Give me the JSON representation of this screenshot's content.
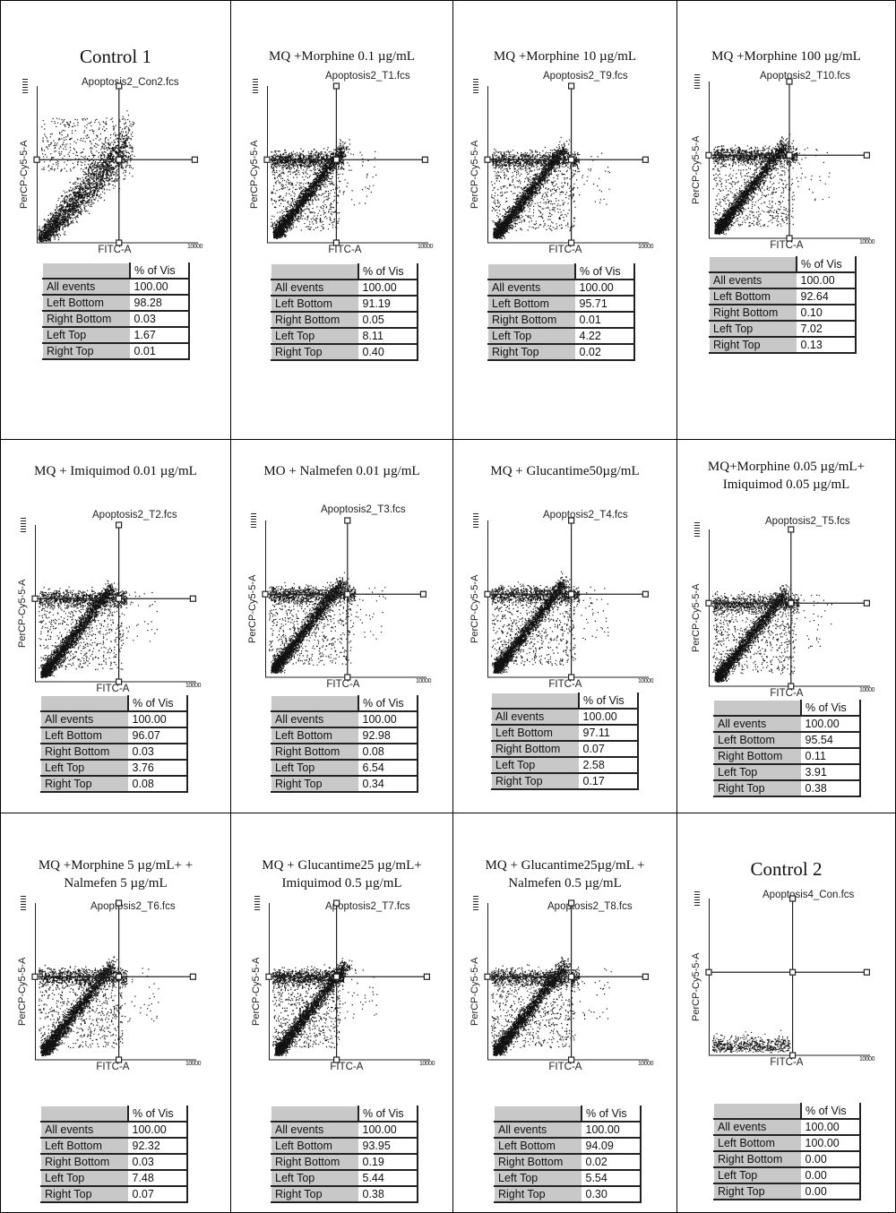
{
  "axes": {
    "x_label": "FITC-A",
    "y_label": "PerCP-Cy5-5-A",
    "x_max_tick": "10000"
  },
  "table_header": "% of Vis",
  "row_labels": [
    "All events",
    "Left Bottom",
    "Right Bottom",
    "Left Top",
    "Right Top"
  ],
  "panels": [
    {
      "title_lines": [
        "Control 1"
      ],
      "big_title": true,
      "file": "Apoptosis2_Con2.fcs",
      "values": [
        "100.00",
        "98.28",
        "0.03",
        "1.67",
        "0.01"
      ]
    },
    {
      "title_lines": [
        "MQ +Morphine 0.1 µg/mL"
      ],
      "file": "Apoptosis2_T1.fcs",
      "values": [
        "100.00",
        "91.19",
        "0.05",
        "8.11",
        "0.40"
      ]
    },
    {
      "title_lines": [
        "MQ +Morphine 10 µg/mL"
      ],
      "file": "Apoptosis2_T9.fcs",
      "values": [
        "100.00",
        "95.71",
        "0.01",
        "4.22",
        "0.02"
      ]
    },
    {
      "title_lines": [
        "MQ +Morphine 100 µg/mL"
      ],
      "file": "Apoptosis2_T10.fcs",
      "values": [
        "100.00",
        "92.64",
        "0.10",
        "7.02",
        "0.13"
      ]
    },
    {
      "title_lines": [
        "MQ + Imiquimod 0.01 µg/mL"
      ],
      "file": "Apoptosis2_T2.fcs",
      "values": [
        "100.00",
        "96.07",
        "0.03",
        "3.76",
        "0.08"
      ]
    },
    {
      "title_lines": [
        "MO +  Nalmefen 0.01 µg/mL"
      ],
      "file": "Apoptosis2_T3.fcs",
      "values": [
        "100.00",
        "92.98",
        "0.08",
        "6.54",
        "0.34"
      ]
    },
    {
      "title_lines": [
        "MQ + Glucantime50µg/mL"
      ],
      "file": "Apoptosis2_T4.fcs",
      "values": [
        "100.00",
        "97.11",
        "0.07",
        "2.58",
        "0.17"
      ]
    },
    {
      "title_lines": [
        "MQ+Morphine 0.05 µg/mL+",
        "Imiquimod 0.05 µg/mL"
      ],
      "file": "Apoptosis2_T5.fcs",
      "values": [
        "100.00",
        "95.54",
        "0.11",
        "3.91",
        "0.38"
      ]
    },
    {
      "title_lines": [
        "MQ +Morphine 5 µg/mL+ +",
        "Nalmefen 5 µg/mL"
      ],
      "file": "Apoptosis2_T6.fcs",
      "values": [
        "100.00",
        "92.32",
        "0.03",
        "7.48",
        "0.07"
      ]
    },
    {
      "title_lines": [
        "MQ + Glucantime25 µg/mL+",
        "Imiquimod 0.5 µg/mL"
      ],
      "file": "Apoptosis2_T7.fcs",
      "values": [
        "100.00",
        "93.95",
        "0.19",
        "5.44",
        "0.38"
      ]
    },
    {
      "title_lines": [
        "MQ + Glucantime25µg/mL +",
        "Nalmefen 0.5 µg/mL"
      ],
      "file": "Apoptosis2_T8.fcs",
      "values": [
        "100.00",
        "94.09",
        "0.02",
        "5.54",
        "0.30"
      ]
    },
    {
      "title_lines": [
        "Control 2"
      ],
      "big_title": true,
      "file": "Apoptosis4_Con.fcs",
      "values": [
        "100.00",
        "100.00",
        "0.00",
        "0.00",
        "0.00"
      ]
    }
  ],
  "chart_data": {
    "type": "scatter",
    "x_axis": "FITC-A",
    "y_axis": "PerCP-Cy5-5-A",
    "quadrant_columns": [
      "All events",
      "Left Bottom",
      "Right Bottom",
      "Left Top",
      "Right Top"
    ],
    "quadrant_percentages": {
      "Control 1": [
        100.0,
        98.28,
        0.03,
        1.67,
        0.01
      ],
      "MQ +Morphine 0.1 µg/mL": [
        100.0,
        91.19,
        0.05,
        8.11,
        0.4
      ],
      "MQ +Morphine 10 µg/mL": [
        100.0,
        95.71,
        0.01,
        4.22,
        0.02
      ],
      "MQ +Morphine 100 µg/mL": [
        100.0,
        92.64,
        0.1,
        7.02,
        0.13
      ],
      "MQ + Imiquimod 0.01 µg/mL": [
        100.0,
        96.07,
        0.03,
        3.76,
        0.08
      ],
      "MO +  Nalmefen 0.01 µg/mL": [
        100.0,
        92.98,
        0.08,
        6.54,
        0.34
      ],
      "MQ + Glucantime50µg/mL": [
        100.0,
        97.11,
        0.07,
        2.58,
        0.17
      ],
      "MQ+Morphine 0.05 µg/mL+ Imiquimod 0.05 µg/mL": [
        100.0,
        95.54,
        0.11,
        3.91,
        0.38
      ],
      "MQ +Morphine 5 µg/mL+ + Nalmefen 5 µg/mL": [
        100.0,
        92.32,
        0.03,
        7.48,
        0.07
      ],
      "MQ + Glucantime25 µg/mL+ Imiquimod 0.5 µg/mL": [
        100.0,
        93.95,
        0.19,
        5.44,
        0.38
      ],
      "MQ + Glucantime25µg/mL + Nalmefen 0.5 µg/mL": [
        100.0,
        94.09,
        0.02,
        5.54,
        0.3
      ],
      "Control 2": [
        100.0,
        100.0,
        0.0,
        0.0,
        0.0
      ]
    }
  }
}
